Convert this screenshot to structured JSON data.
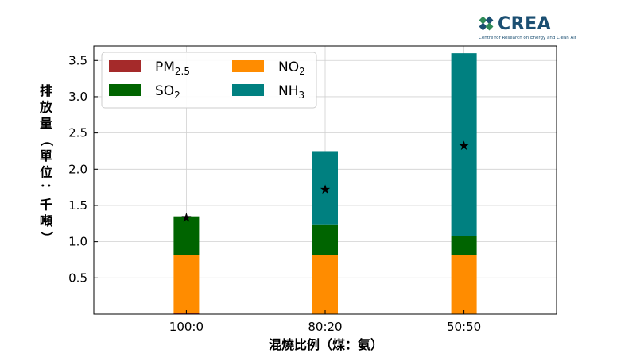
{
  "logo": {
    "name": "CREA",
    "subtitle": "Centre for Research on Energy and Clean Air"
  },
  "chart_data": {
    "type": "bar",
    "stacked": true,
    "title": "",
    "categories": [
      "100:0",
      "80:20",
      "50:50"
    ],
    "xlabel": "混燒比例（煤：氨）",
    "ylabel": "排放量（單位：千噸）",
    "ylim": [
      0,
      3.7
    ],
    "yticks": [
      "0.5",
      "1.0",
      "1.5",
      "2.0",
      "2.5",
      "3.0",
      "3.5"
    ],
    "grid": true,
    "legend_position": "top-left",
    "series": [
      {
        "name": "PM",
        "sub": "2.5",
        "color": "#a52a2a",
        "values": [
          0.02,
          0.0,
          0.0
        ]
      },
      {
        "name": "NO",
        "sub": "2",
        "color": "#ff8c00",
        "values": [
          0.8,
          0.82,
          0.81
        ]
      },
      {
        "name": "SO",
        "sub": "2",
        "color": "#006400",
        "values": [
          0.53,
          0.42,
          0.27
        ]
      },
      {
        "name": "NH",
        "sub": "3",
        "color": "#008080",
        "values": [
          0.0,
          1.01,
          2.52
        ]
      }
    ],
    "legend_order": [
      0,
      2,
      1,
      3
    ],
    "markers": {
      "symbol": "★",
      "values": [
        1.34,
        1.73,
        2.33
      ]
    }
  }
}
